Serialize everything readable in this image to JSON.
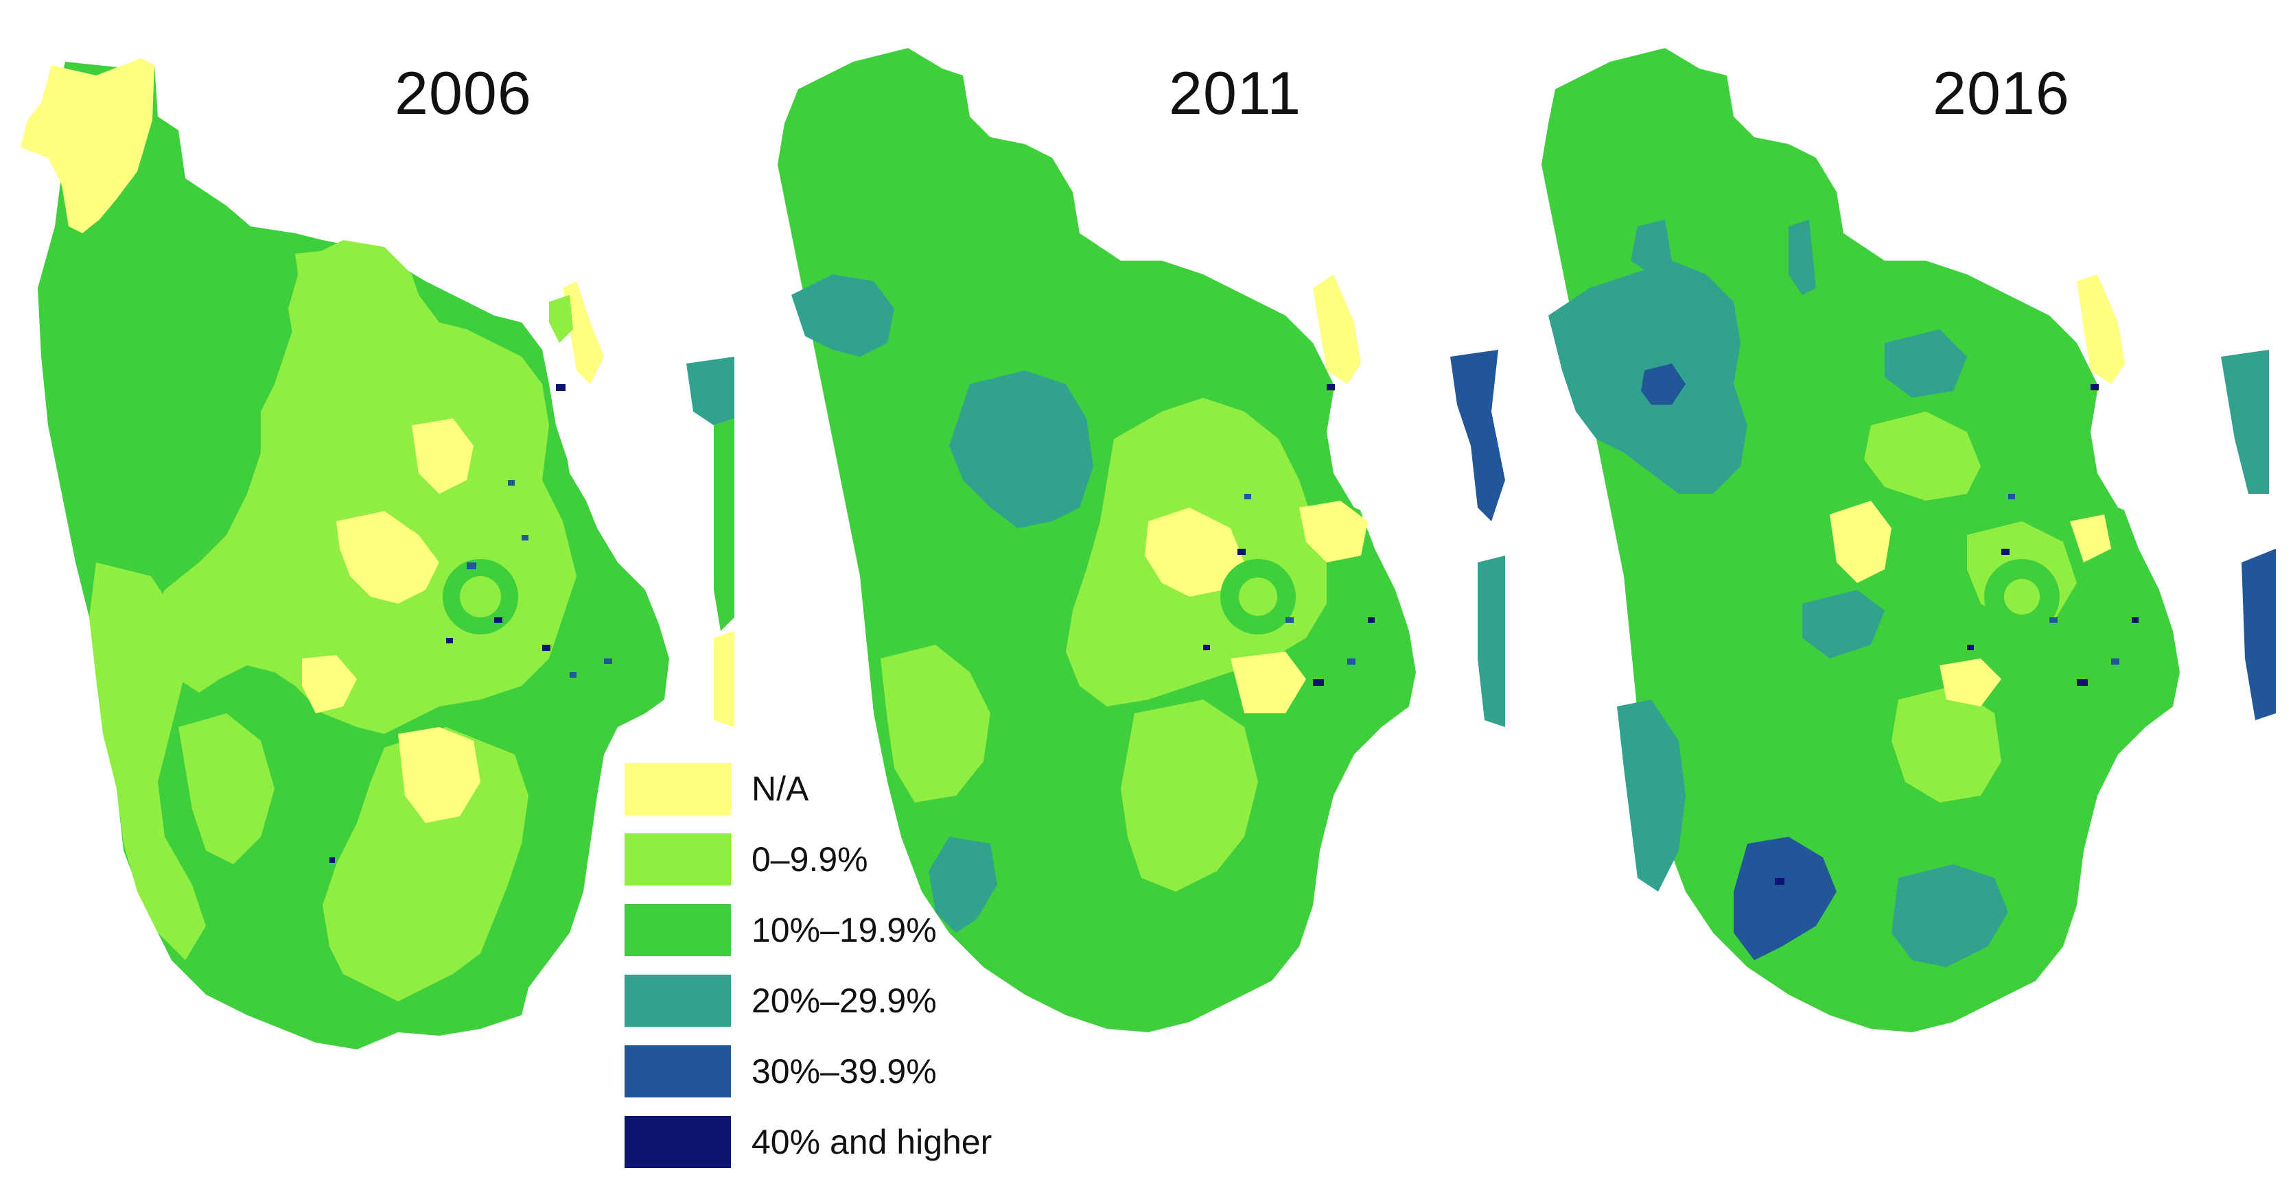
{
  "panels": [
    {
      "year": "2006",
      "base_class": "10%–19.9%",
      "regions": [
        {
          "class": "N/A",
          "area": "northwest corner"
        },
        {
          "class": "0–9.9%",
          "area": "central band"
        },
        {
          "class": "0–9.9%",
          "area": "southern centre"
        },
        {
          "class": "0–9.9%",
          "area": "southwest"
        },
        {
          "class": "0–9.9%",
          "area": "northeast"
        },
        {
          "class": "N/A",
          "area": "central patches"
        },
        {
          "class": "N/A",
          "area": "coast strip"
        },
        {
          "class": "20%–29.9%",
          "area": "island edge"
        },
        {
          "class": "30%–39.9%",
          "area": "urban specks"
        },
        {
          "class": "40% and higher",
          "area": "urban specks"
        }
      ]
    },
    {
      "year": "2011",
      "base_class": "10%–19.9%",
      "regions": [
        {
          "class": "20%–29.9%",
          "area": "west lobe"
        },
        {
          "class": "20%–29.9%",
          "area": "central west block"
        },
        {
          "class": "20%–29.9%",
          "area": "southwest block"
        },
        {
          "class": "0–9.9%",
          "area": "central band"
        },
        {
          "class": "0–9.9%",
          "area": "south centre"
        },
        {
          "class": "N/A",
          "area": "central patches"
        },
        {
          "class": "N/A",
          "area": "coast strip"
        },
        {
          "class": "30%–39.9%",
          "area": "island"
        },
        {
          "class": "20%–29.9%",
          "area": "island south"
        },
        {
          "class": "40% and higher",
          "area": "urban specks"
        }
      ]
    },
    {
      "year": "2016",
      "base_class": "10%–19.9%",
      "regions": [
        {
          "class": "20%–29.9%",
          "area": "west block"
        },
        {
          "class": "30%–39.9%",
          "area": "west inner"
        },
        {
          "class": "20%–29.9%",
          "area": "southwest strip"
        },
        {
          "class": "30%–39.9%",
          "area": "south block"
        },
        {
          "class": "20%–29.9%",
          "area": "southeast block"
        },
        {
          "class": "0–9.9%",
          "area": "central patches"
        },
        {
          "class": "N/A",
          "area": "central patches"
        },
        {
          "class": "N/A",
          "area": "coast strip"
        },
        {
          "class": "30%–39.9%",
          "area": "island"
        },
        {
          "class": "40% and higher",
          "area": "urban specks"
        }
      ]
    }
  ],
  "legend": [
    {
      "label": "N/A",
      "color": "#FFFF80"
    },
    {
      "label": "0–9.9%",
      "color": "#90EE42"
    },
    {
      "label": "10%–19.9%",
      "color": "#3FCF3D"
    },
    {
      "label": "20%–29.9%",
      "color": "#30A28E"
    },
    {
      "label": "30%–39.9%",
      "color": "#215798"
    },
    {
      "label": "40% and higher",
      "color": "#0D1472"
    }
  ]
}
